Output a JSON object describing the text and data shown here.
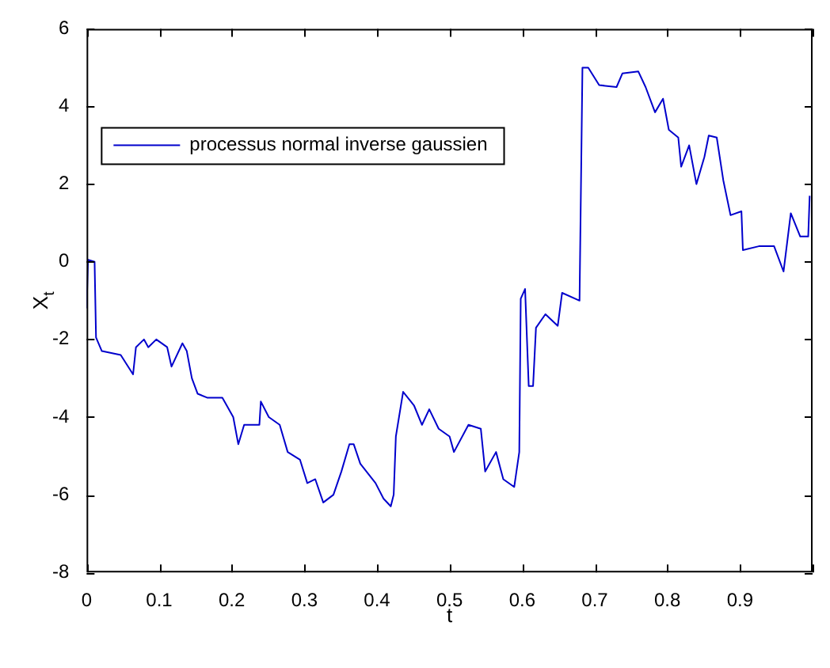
{
  "chart_data": {
    "type": "line",
    "xlabel": "t",
    "ylabel": "X$_{t}$",
    "xlim": [
      0,
      1
    ],
    "xticks": [
      0,
      0.1,
      0.2,
      0.3,
      0.4,
      0.5,
      0.6,
      0.7,
      0.8,
      0.9,
      {
        "value": 1,
        "label": null
      }
    ],
    "ylim": [
      -8,
      6
    ],
    "yticks": [
      -8,
      -6,
      -4,
      -2,
      0,
      2,
      4,
      6
    ],
    "grid": false,
    "legend": "top left",
    "marker": "none",
    "line_style": "solid",
    "series": [
      {
        "name": "processus normal inverse gaussien",
        "color": "#0000cc",
        "x": [
          0,
          0.002,
          0.011,
          0.013,
          0.021,
          0.047,
          0.064,
          0.068,
          0.079,
          0.085,
          0.096,
          0.111,
          0.117,
          0.132,
          0.138,
          0.145,
          0.153,
          0.166,
          0.187,
          0.202,
          0.209,
          0.217,
          0.238,
          0.24,
          0.251,
          0.266,
          0.277,
          0.294,
          0.304,
          0.315,
          0.326,
          0.34,
          0.351,
          0.362,
          0.368,
          0.377,
          0.398,
          0.409,
          0.419,
          0.423,
          0.426,
          0.436,
          0.451,
          0.462,
          0.472,
          0.485,
          0.5,
          0.506,
          0.526,
          0.543,
          0.549,
          0.564,
          0.574,
          0.589,
          0.596,
          0.598,
          0.604,
          0.609,
          0.615,
          0.619,
          0.632,
          0.649,
          0.655,
          0.679,
          0.683,
          0.691,
          0.706,
          0.73,
          0.738,
          0.76,
          0.77,
          0.783,
          0.794,
          0.802,
          0.815,
          0.819,
          0.83,
          0.84,
          0.851,
          0.857,
          0.868,
          0.877,
          0.887,
          0.902,
          0.904,
          0.926,
          0.947,
          0.96,
          0.97,
          0.983,
          0.994,
          0.996
        ],
        "values": [
          -1.2,
          0.05,
          0,
          -1.95,
          -2.3,
          -2.4,
          -2.9,
          -2.2,
          -2.0,
          -2.2,
          -2.0,
          -2.2,
          -2.7,
          -2.1,
          -2.3,
          -3.0,
          -3.4,
          -3.5,
          -3.5,
          -4.0,
          -4.7,
          -4.2,
          -4.2,
          -3.6,
          -4.0,
          -4.2,
          -4.9,
          -5.1,
          -5.7,
          -5.6,
          -6.2,
          -6.0,
          -5.4,
          -4.7,
          -4.7,
          -5.2,
          -5.7,
          -6.1,
          -6.3,
          -6.0,
          -4.5,
          -3.35,
          -3.7,
          -4.2,
          -3.8,
          -4.3,
          -4.5,
          -4.9,
          -4.2,
          -4.3,
          -5.4,
          -4.9,
          -5.6,
          -5.8,
          -4.9,
          -0.95,
          -0.7,
          -3.2,
          -3.2,
          -1.7,
          -1.35,
          -1.65,
          -0.8,
          -1.0,
          5.0,
          5.0,
          4.55,
          4.5,
          4.85,
          4.9,
          4.5,
          3.85,
          4.2,
          3.4,
          3.2,
          2.45,
          3.0,
          2.0,
          2.7,
          3.25,
          3.2,
          2.1,
          1.2,
          1.3,
          0.3,
          0.4,
          0.4,
          -0.25,
          1.25,
          0.65,
          0.65,
          1.7
        ]
      }
    ]
  }
}
